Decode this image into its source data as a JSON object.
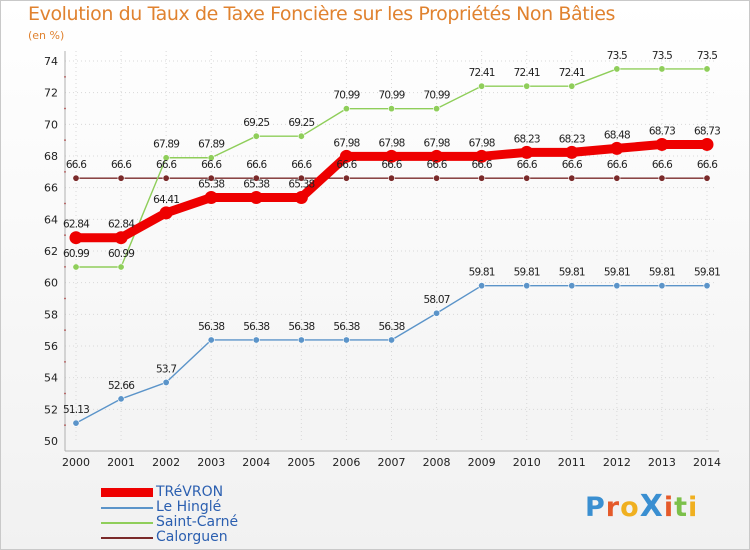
{
  "title": "Evolution du Taux de Taxe Foncière sur les Propriétés Non Bâties",
  "unit_label": "(en %)",
  "logo_text": "ProXiti",
  "chart_data": {
    "type": "line",
    "title": "Evolution du Taux de Taxe Foncière sur les Propriétés Non Bâties",
    "ylabel": "(en %)",
    "xlabel": "",
    "x": [
      "2000",
      "2001",
      "2002",
      "2003",
      "2004",
      "2005",
      "2006",
      "2007",
      "2008",
      "2009",
      "2010",
      "2011",
      "2012",
      "2013",
      "2014"
    ],
    "ylim": [
      50,
      74
    ],
    "yticks": [
      50,
      52,
      54,
      56,
      58,
      60,
      62,
      64,
      66,
      68,
      70,
      72,
      74
    ],
    "legend_position": "bottom-left",
    "series": [
      {
        "name": "TRéVRON",
        "color": "#ee0000",
        "width": "thick",
        "values": [
          62.84,
          62.84,
          64.41,
          65.38,
          65.38,
          65.38,
          67.98,
          67.98,
          67.98,
          67.98,
          68.23,
          68.23,
          68.48,
          68.73,
          68.73
        ],
        "labels": [
          "62.84",
          "62.84",
          "64.41",
          "65.38",
          "65.38",
          "65.38",
          "67.98",
          "67.98",
          "67.98",
          "67.98",
          "68.23",
          "68.23",
          "68.48",
          "68.73",
          "68.73"
        ]
      },
      {
        "name": "Le Hinglé",
        "color": "#5b94c9",
        "width": "thin",
        "values": [
          51.13,
          52.66,
          53.7,
          56.38,
          56.38,
          56.38,
          56.38,
          56.38,
          58.07,
          59.81,
          59.81,
          59.81,
          59.81,
          59.81,
          59.81
        ],
        "labels": [
          "51.13",
          "52.66",
          "53.7",
          "56.38",
          "56.38",
          "56.38",
          "56.38",
          "56.38",
          "58.07",
          "59.81",
          "59.81",
          "59.81",
          "59.81",
          "59.81",
          "59.81"
        ]
      },
      {
        "name": "Saint-Carné",
        "color": "#8fce5a",
        "width": "thin",
        "values": [
          60.99,
          60.99,
          67.89,
          67.89,
          69.25,
          69.25,
          70.99,
          70.99,
          70.99,
          72.41,
          72.41,
          72.41,
          73.5,
          73.5,
          73.5
        ],
        "labels": [
          "60.99",
          "60.99",
          "67.89",
          "67.89",
          "69.25",
          "69.25",
          "70.99",
          "70.99",
          "70.99",
          "72.41",
          "72.41",
          "72.41",
          "73.5",
          "73.5",
          "73.5"
        ]
      },
      {
        "name": "Calorguen",
        "color": "#7a2a2a",
        "width": "thin",
        "values": [
          66.6,
          66.6,
          66.6,
          66.6,
          66.6,
          66.6,
          66.6,
          66.6,
          66.6,
          66.6,
          66.6,
          66.6,
          66.6,
          66.6,
          66.6
        ],
        "labels": [
          "66.6",
          "66.6",
          "66.6",
          "66.6",
          "66.6",
          "66.6",
          "66.6",
          "66.6",
          "66.6",
          "66.6",
          "66.6",
          "66.6",
          "66.6",
          "66.6",
          "66.6"
        ]
      }
    ]
  }
}
